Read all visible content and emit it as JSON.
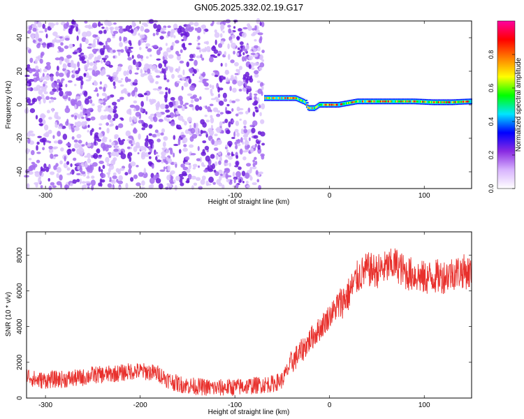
{
  "title": "GN05.2025.332.02.19.G17",
  "chart_data": [
    {
      "type": "heatmap",
      "xlabel": "Height of straight line (km)",
      "ylabel": "Frequency (Hz)",
      "xlim": [
        -320,
        150
      ],
      "ylim": [
        -50,
        50
      ],
      "xticks": [
        -300,
        -200,
        -100,
        0,
        100
      ],
      "yticks": [
        -40,
        -20,
        0,
        20,
        40
      ],
      "grid": false,
      "colorbar": {
        "label": "Normalized spectral amplitude",
        "range": [
          0,
          1
        ],
        "ticks": [
          "0.0",
          "0.2",
          "0.4",
          "0.6",
          "0.8"
        ],
        "colors": [
          "#ffffff",
          "#e0c8ff",
          "#8a2be2",
          "#0000ff",
          "#00e5ff",
          "#00ff00",
          "#ffff00",
          "#ff8000",
          "#ff0000",
          "#ff00a0"
        ]
      },
      "noise_region": {
        "x_range": [
          -320,
          -70
        ],
        "freq_range": [
          -50,
          50
        ],
        "typical_amplitude": 0.15
      },
      "signal_trace": {
        "x": [
          -68,
          -55,
          -35,
          -25,
          -22,
          -15,
          -10,
          0,
          10,
          20,
          30,
          50,
          70,
          90,
          110,
          130,
          150
        ],
        "freq": [
          4,
          4,
          4,
          1.5,
          -2,
          -2,
          0,
          0,
          0,
          1,
          2,
          2,
          2,
          2,
          1.5,
          1.5,
          2
        ],
        "peak_amplitude": 0.95
      }
    },
    {
      "type": "line",
      "xlabel": "Height of straight line (km)",
      "ylabel": "SNR (10 * v/v)",
      "xlim": [
        -320,
        150
      ],
      "ylim": [
        0,
        9300
      ],
      "xticks": [
        -300,
        -200,
        -100,
        0,
        100
      ],
      "yticks": [
        0,
        2000,
        4000,
        6000,
        8000
      ],
      "grid": false,
      "line_color": "#e8302c",
      "series": [
        {
          "x": [
            -320,
            -310,
            -300,
            -290,
            -280,
            -270,
            -260,
            -250,
            -240,
            -230,
            -220,
            -210,
            -200,
            -190,
            -180,
            -170,
            -160,
            -150,
            -140,
            -130,
            -120,
            -110,
            -100,
            -90,
            -80,
            -70,
            -60,
            -50,
            -40,
            -30,
            -20,
            -10,
            0,
            10,
            20,
            30,
            40,
            50,
            60,
            70,
            80,
            90,
            100,
            110,
            120,
            130,
            140,
            150
          ],
          "values": [
            1300,
            1000,
            1000,
            1050,
            1050,
            1100,
            1150,
            1300,
            1300,
            1350,
            1400,
            1500,
            1500,
            1450,
            1350,
            1000,
            800,
            700,
            650,
            600,
            550,
            600,
            600,
            650,
            700,
            750,
            800,
            1000,
            2000,
            2600,
            3300,
            3900,
            4600,
            5200,
            5800,
            6800,
            7200,
            7100,
            7300,
            7500,
            7000,
            6900,
            6700,
            6800,
            6800,
            7000,
            7100,
            7000
          ],
          "noise_amplitude": 700
        }
      ]
    }
  ]
}
